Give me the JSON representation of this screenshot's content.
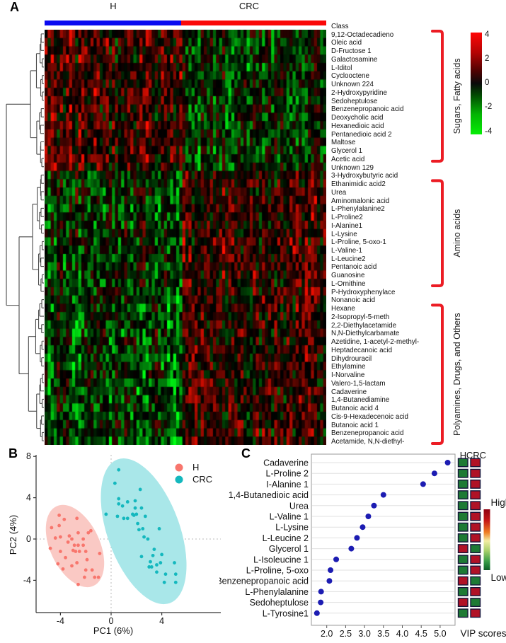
{
  "panels": {
    "a": {
      "label": "A"
    },
    "b": {
      "label": "B"
    },
    "c": {
      "label": "C"
    }
  },
  "chart_data": [
    {
      "type": "heatmap",
      "panel": "A",
      "class_row_label": "Class",
      "column_groups": [
        {
          "name": "H",
          "n": 45,
          "color": "#0A0AF0"
        },
        {
          "name": "CRC",
          "n": 47,
          "color": "#FA0808"
        }
      ],
      "rows": [
        "9,12-Octadecadieno",
        "Oleic acid",
        "D-Fructose 1",
        "Galactosamine",
        "L-Iditol",
        "Cyclooctene",
        "Unknown 224",
        "2-Hydroxypyridine",
        "Sedoheptulose",
        "Benzenepropanoic acid",
        "Deoxycholic acid",
        "Hexanedioic acid",
        "Pentanedioic acid 2",
        "Maltose",
        "Glycerol 1",
        "Acetic acid",
        "Unknown 129",
        "3-Hydroxybutyric acid",
        "Ethanimidic acid2",
        "Urea",
        "Aminomalonic acid",
        "L-Phenylalanine2",
        "L-Proline2",
        "I-Alanine1",
        "L-Lysine",
        "L-Proline, 5-oxo-1",
        "L-Valine-1",
        "L-Leucine2",
        "Pentanoic acid",
        "Guanosine",
        "L-Ornithine",
        "P-Hydroxyphenylace",
        "Nonanoic acid",
        "Hexane",
        "2-Isopropyl-5-meth",
        "2,2-Diethylacetamide",
        "N,N-Diethylcarbamate",
        "Azetidine, 1-acetyl-2-methyl-",
        "Heptadecanoic acid",
        "Dihydrouracil",
        "Ethylamine",
        "I-Norvaline",
        "Valero-1,5-lactam",
        "Cadaverine",
        "1,4-Butanediamine",
        "Butanoic acid 4",
        "Cis-9-Hexadecenoic acid",
        "Butanoic acid 1",
        "Benzenepropanoic acid",
        "Acetamide, N,N-diethyl-"
      ],
      "row_groups": [
        {
          "name": "Sugars, Fatty acids",
          "start_row": 0,
          "end_row": 15
        },
        {
          "name": "Amino acids",
          "start_row": 18,
          "end_row": 30
        },
        {
          "name": "Polyamines, Drugs, and Others",
          "start_row": 33,
          "end_row": 49
        }
      ],
      "value_scale": {
        "min": -4,
        "max": 4,
        "ticks": [
          "4",
          "2",
          "0",
          "-2",
          "-4"
        ],
        "colormap": "green-black-red"
      },
      "bracket_color": "#EC1C24",
      "pattern_note": "Sugars/Fatty acids rows higher (red) in H; Amino acid and Polyamine rows higher (red) in CRC"
    },
    {
      "type": "scatter",
      "panel": "B",
      "xlabel": "PC1 (6%)",
      "ylabel": "PC2 (4%)",
      "xticks": [
        -4,
        0,
        4
      ],
      "yticks": [
        -4,
        0,
        4,
        8
      ],
      "xlim": [
        -5.9,
        7.0
      ],
      "ylim": [
        -7.1,
        8.2
      ],
      "zero_lines": true,
      "legend": [
        {
          "name": "H",
          "color": "#F8766D"
        },
        {
          "name": "CRC",
          "color": "#14B8BE"
        }
      ],
      "series": [
        {
          "name": "H",
          "color": "#F8766D",
          "points": [
            [
              -4.1,
              2.3
            ],
            [
              -3.7,
              1.9
            ],
            [
              -2.7,
              2.0
            ],
            [
              -4.7,
              1.1
            ],
            [
              -4.1,
              1.3
            ],
            [
              -1.6,
              0.8
            ],
            [
              -4.4,
              0.1
            ],
            [
              -4.0,
              0.2
            ],
            [
              -3.1,
              0.0
            ],
            [
              -2.6,
              0.6
            ],
            [
              -2.2,
              0.0
            ],
            [
              -1.8,
              0.6
            ],
            [
              -4.8,
              -0.9
            ],
            [
              -4.0,
              -1.2
            ],
            [
              -2.9,
              -0.6
            ],
            [
              -2.6,
              -0.6
            ],
            [
              -2.2,
              -0.6
            ],
            [
              -3.0,
              -1.1
            ],
            [
              -2.8,
              -1.2
            ],
            [
              -2.5,
              -1.2
            ],
            [
              -2.0,
              -1.2
            ],
            [
              -0.9,
              -1.4
            ],
            [
              -3.6,
              -1.8
            ],
            [
              -4.2,
              -2.4
            ],
            [
              -3.1,
              -2.6
            ],
            [
              -2.7,
              -2.3
            ],
            [
              -2.0,
              -3.0
            ],
            [
              -1.5,
              -3.0
            ],
            [
              -2.1,
              -3.7
            ],
            [
              -1.3,
              -3.7
            ],
            [
              -1.0,
              -3.7
            ],
            [
              -2.6,
              -4.4
            ],
            [
              -3.3,
              0.3
            ],
            [
              -3.4,
              -0.3
            ],
            [
              -1.9,
              -2.0
            ],
            [
              -3.8,
              -2.9
            ]
          ]
        },
        {
          "name": "CRC",
          "color": "#14B8BE",
          "points": [
            [
              0.6,
              6.7
            ],
            [
              0.3,
              5.4
            ],
            [
              2.3,
              4.8
            ],
            [
              0.6,
              3.9
            ],
            [
              1.3,
              3.6
            ],
            [
              1.9,
              3.7
            ],
            [
              0.6,
              3.4
            ],
            [
              0.9,
              3.2
            ],
            [
              1.9,
              3.0
            ],
            [
              2.4,
              3.0
            ],
            [
              1.7,
              2.4
            ],
            [
              2.0,
              2.4
            ],
            [
              2.7,
              2.2
            ],
            [
              -0.4,
              2.4
            ],
            [
              0.5,
              2.2
            ],
            [
              1.0,
              2.0
            ],
            [
              1.3,
              2.0
            ],
            [
              1.8,
              2.3
            ],
            [
              2.2,
              0.9
            ],
            [
              2.5,
              1.0
            ],
            [
              3.8,
              1.0
            ],
            [
              2.6,
              0.2
            ],
            [
              3.4,
              -1.0
            ],
            [
              3.3,
              -1.6
            ],
            [
              4.0,
              -1.5
            ],
            [
              2.4,
              -1.7
            ],
            [
              3.1,
              -2.2
            ],
            [
              3.0,
              -2.7
            ],
            [
              3.2,
              -2.7
            ],
            [
              3.6,
              -2.5
            ],
            [
              3.9,
              -2.3
            ],
            [
              5.0,
              -2.3
            ],
            [
              3.6,
              -3.2
            ],
            [
              4.3,
              -3.4
            ],
            [
              5.1,
              -3.4
            ],
            [
              4.2,
              -4.2
            ],
            [
              5.1,
              -4.2
            ],
            [
              2.9,
              0.0
            ],
            [
              2.1,
              1.5
            ]
          ]
        }
      ],
      "ellipses": [
        {
          "series": "H",
          "center": [
            -2.85,
            -0.68
          ],
          "rx": 1.96,
          "ry": 4.25,
          "angle_deg": -25,
          "fill": "#FAC9C4"
        },
        {
          "series": "CRC",
          "center": [
            2.57,
            0.75
          ],
          "rx": 2.85,
          "ry": 7.4,
          "angle_deg": -20,
          "fill": "#A9E7E9"
        }
      ]
    },
    {
      "type": "scatter",
      "panel": "C",
      "xlabel": "VIP scores",
      "categories": [
        "Cadaverine",
        "L-Proline 2",
        "I-Alanine 1",
        "1,4-Butanedioic acid",
        "Urea",
        "L-Valine 1",
        "L-Lysine",
        "L-Leucine 2",
        "Glycerol 1",
        "L-Isoleucine 1",
        "L-Proline, 5-oxo",
        "Benzenepropanoic acid",
        "L-Phenylalanine",
        "Sedoheptulose",
        "L-Tyrosine1"
      ],
      "values": [
        5.2,
        4.85,
        4.55,
        3.5,
        3.25,
        3.1,
        2.95,
        2.8,
        2.65,
        2.25,
        2.1,
        2.07,
        1.85,
        1.84,
        1.74
      ],
      "xticks": [
        "2.0",
        "2.5",
        "3.0",
        "3.5",
        "4.0",
        "4.5",
        "5.0"
      ],
      "xlim": [
        1.6,
        5.4
      ],
      "dot_color": "#1C1CB2",
      "group_columns": [
        "H",
        "CRC"
      ],
      "abundance_H": [
        "low",
        "low",
        "low",
        "low",
        "low",
        "low",
        "low",
        "low",
        "high",
        "low",
        "low",
        "high",
        "low",
        "high",
        "low"
      ],
      "abundance_CRC": [
        "high",
        "high",
        "high",
        "high",
        "high",
        "high",
        "high",
        "high",
        "low",
        "high",
        "high",
        "low",
        "high",
        "low",
        "high"
      ],
      "abundance_colors": {
        "high": "#B01226",
        "low": "#1E7A34"
      },
      "scale_labels": {
        "top": "High",
        "bottom": "Low"
      }
    }
  ]
}
